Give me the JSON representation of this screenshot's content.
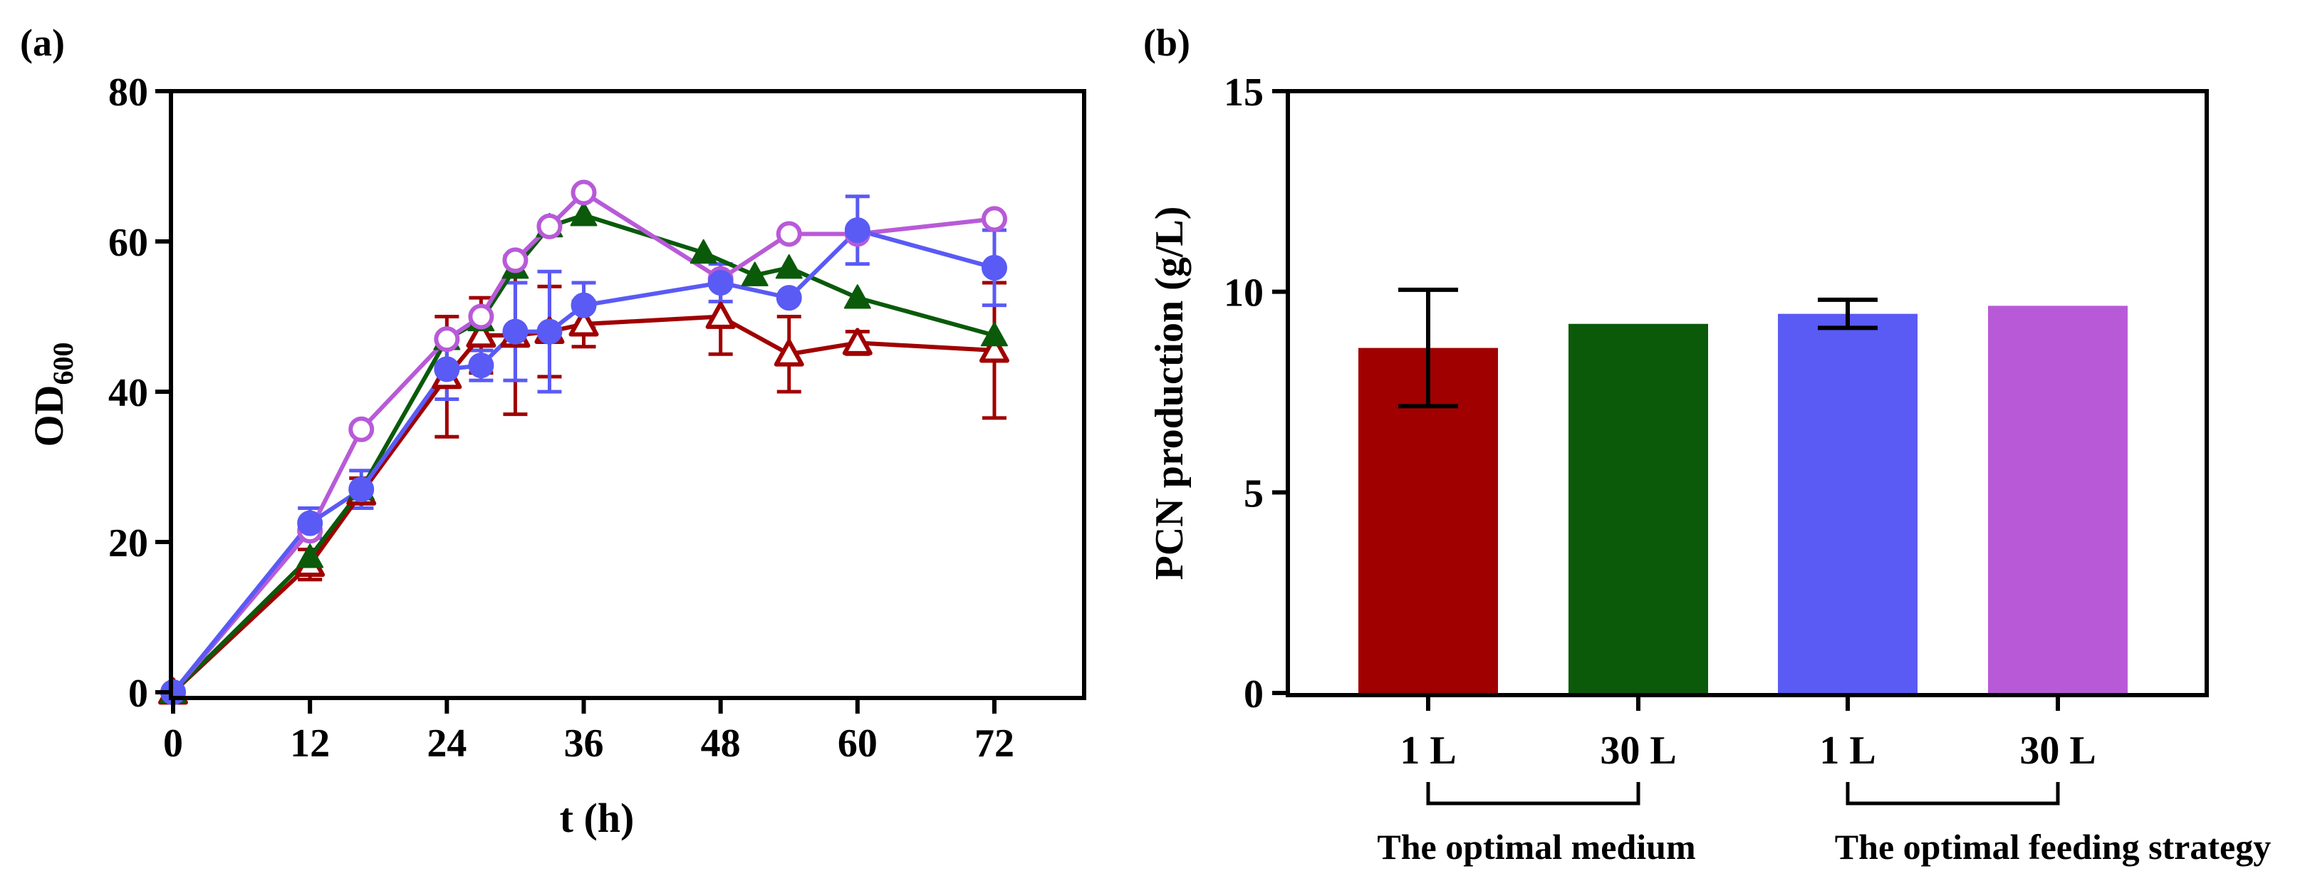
{
  "figure": {
    "background": "#ffffff"
  },
  "chart_data": [
    {
      "panel": "a",
      "panel_label": "(a)",
      "type": "line",
      "title": "",
      "xlabel": "t (h)",
      "ylabel": {
        "main": "OD",
        "sub": "600"
      },
      "xlim": [
        0,
        78
      ],
      "ylim": [
        0,
        80
      ],
      "xticks": [
        0,
        12,
        24,
        36,
        48,
        60,
        72
      ],
      "yticks": [
        0,
        20,
        40,
        60,
        80
      ],
      "grid": false,
      "legend": "none",
      "series": [
        {
          "name": "dark red open triangle",
          "color": "#a00000",
          "marker": "triangle-open",
          "x": [
            0,
            12,
            16.5,
            24,
            27,
            30,
            33,
            36,
            48,
            54,
            60,
            72
          ],
          "y": [
            0,
            17,
            26.5,
            42,
            47.5,
            47.5,
            48,
            49,
            50,
            45,
            46.5,
            45.5
          ],
          "err": [
            0,
            2,
            2,
            8,
            5,
            10.5,
            6,
            3,
            5,
            5,
            1.5,
            9
          ]
        },
        {
          "name": "dark green filled triangle",
          "color": "#0a5a0a",
          "marker": "triangle-filled",
          "x": [
            0,
            12,
            16.5,
            24,
            27,
            30,
            33,
            36,
            46.5,
            51,
            54,
            60,
            72
          ],
          "y": [
            0,
            18,
            27,
            47,
            49.5,
            56.5,
            62,
            63.5,
            58.5,
            55.5,
            56.5,
            52.5,
            47.5
          ],
          "err": [
            0,
            0,
            0,
            0,
            0,
            0,
            0,
            0,
            0,
            0,
            0,
            0,
            0
          ]
        },
        {
          "name": "violet open circle",
          "color": "#b85ad8",
          "marker": "circle-open",
          "x": [
            0,
            12,
            16.5,
            24,
            27,
            30,
            33,
            36,
            48,
            54,
            60,
            72
          ],
          "y": [
            0,
            21.5,
            35,
            47,
            50,
            57.5,
            62,
            66.5,
            55,
            61,
            61,
            63
          ],
          "err": [
            0,
            0,
            0,
            0,
            0,
            0,
            0,
            0,
            0,
            0,
            0,
            0
          ]
        },
        {
          "name": "blue filled circle",
          "color": "#5a5af5",
          "marker": "circle-filled",
          "x": [
            0,
            12,
            16.5,
            24,
            27,
            30,
            33,
            36,
            48,
            54,
            60,
            72
          ],
          "y": [
            0,
            22.5,
            27,
            43,
            43.5,
            48,
            48,
            51.5,
            54.5,
            52.5,
            61.5,
            56.5
          ],
          "err": [
            0,
            2,
            2.5,
            4,
            2,
            6.5,
            8,
            3,
            2.5,
            0,
            4.5,
            5
          ]
        }
      ]
    },
    {
      "panel": "b",
      "panel_label": "(b)",
      "type": "bar",
      "title": "",
      "xlabel": "",
      "ylabel": "PCN production (g/L)",
      "ylim": [
        0,
        15
      ],
      "yticks": [
        0,
        5,
        10,
        15
      ],
      "grid": false,
      "legend": "none",
      "categories": [
        "1 L",
        "30 L",
        "1 L",
        "30 L"
      ],
      "values": [
        8.6,
        9.2,
        9.45,
        9.65
      ],
      "errors": [
        1.45,
        0,
        0.35,
        0
      ],
      "colors": [
        "#a00000",
        "#0a5a0a",
        "#5a5af5",
        "#b85ad8"
      ],
      "groups": [
        {
          "label": "The optimal medium",
          "members": [
            0,
            1
          ]
        },
        {
          "label": "The optimal feeding strategy",
          "members": [
            2,
            3
          ]
        }
      ]
    }
  ]
}
